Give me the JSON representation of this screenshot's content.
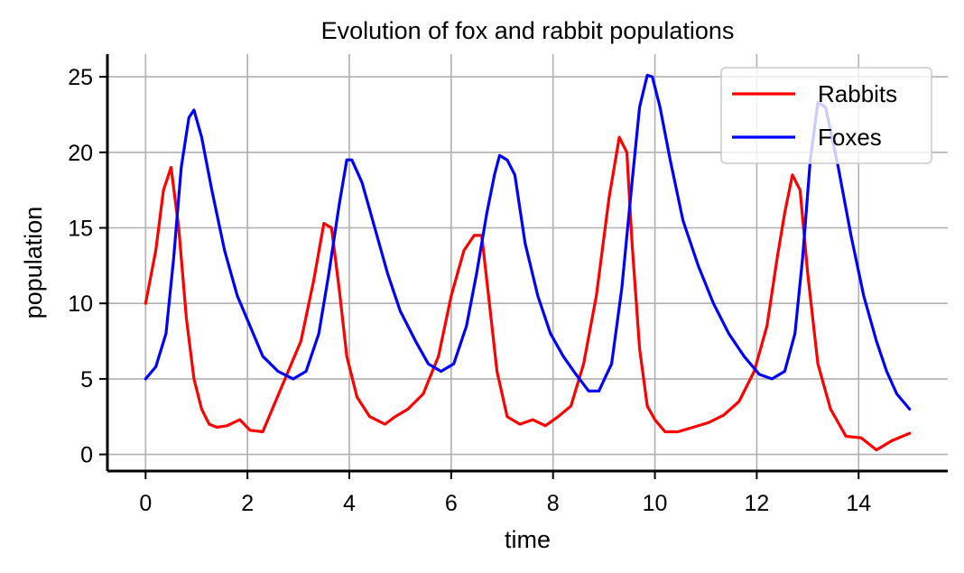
{
  "chart_data": {
    "type": "line",
    "title": "Evolution of fox and rabbit populations",
    "xlabel": "time",
    "ylabel": "population",
    "xlim": [
      -0.75,
      15.75
    ],
    "ylim": [
      -1.1,
      26.5
    ],
    "x_ticks": [
      0,
      2,
      4,
      6,
      8,
      10,
      12,
      14
    ],
    "y_ticks": [
      0,
      5,
      10,
      15,
      20,
      25
    ],
    "grid": true,
    "legend_position": "top-right",
    "series": [
      {
        "name": "Rabbits",
        "color": "#ff0000",
        "x": [
          0,
          0.2,
          0.35,
          0.5,
          0.65,
          0.8,
          0.95,
          1.1,
          1.25,
          1.4,
          1.6,
          1.85,
          2.05,
          2.3,
          2.55,
          2.8,
          3.05,
          3.3,
          3.5,
          3.65,
          3.8,
          3.95,
          4.15,
          4.4,
          4.7,
          4.9,
          5.15,
          5.45,
          5.75,
          6.0,
          6.25,
          6.45,
          6.6,
          6.75,
          6.9,
          7.1,
          7.35,
          7.6,
          7.85,
          8.1,
          8.35,
          8.6,
          8.85,
          9.1,
          9.3,
          9.45,
          9.55,
          9.7,
          9.85,
          10.0,
          10.2,
          10.45,
          10.75,
          11.05,
          11.35,
          11.65,
          11.95,
          12.2,
          12.4,
          12.55,
          12.7,
          12.85,
          13.0,
          13.2,
          13.45,
          13.75,
          14.05,
          14.35,
          14.65,
          15.0
        ],
        "values": [
          10,
          13.5,
          17.5,
          19,
          15,
          9,
          5,
          3,
          2,
          1.8,
          1.9,
          2.3,
          1.6,
          1.5,
          3.5,
          5.5,
          7.5,
          11.5,
          15.3,
          15,
          11,
          6.5,
          3.8,
          2.5,
          2,
          2.5,
          3,
          4,
          6.5,
          10.5,
          13.5,
          14.5,
          14.5,
          10,
          5.5,
          2.5,
          2,
          2.3,
          1.9,
          2.5,
          3.2,
          6,
          10.5,
          17,
          21,
          20,
          14,
          7,
          3.2,
          2.3,
          1.5,
          1.5,
          1.8,
          2.1,
          2.6,
          3.5,
          5.5,
          8.5,
          13,
          16,
          18.5,
          17.5,
          12,
          6,
          3,
          1.2,
          1.1,
          0.3,
          0.9,
          1.4
        ]
      },
      {
        "name": "Foxes",
        "color": "#0000ff",
        "x": [
          0,
          0.2,
          0.4,
          0.55,
          0.7,
          0.85,
          0.95,
          1.1,
          1.3,
          1.55,
          1.8,
          2.05,
          2.3,
          2.6,
          2.9,
          3.15,
          3.4,
          3.6,
          3.8,
          3.95,
          4.05,
          4.25,
          4.5,
          4.75,
          5.0,
          5.3,
          5.55,
          5.8,
          6.05,
          6.3,
          6.5,
          6.7,
          6.85,
          6.95,
          7.1,
          7.25,
          7.45,
          7.7,
          7.95,
          8.2,
          8.45,
          8.7,
          8.9,
          9.15,
          9.35,
          9.55,
          9.7,
          9.85,
          9.95,
          10.1,
          10.3,
          10.55,
          10.85,
          11.15,
          11.45,
          11.75,
          12.05,
          12.3,
          12.55,
          12.75,
          12.9,
          13.05,
          13.2,
          13.35,
          13.6,
          13.85,
          14.1,
          14.35,
          14.55,
          14.75,
          15.0
        ],
        "values": [
          5,
          5.8,
          8,
          13,
          19,
          22.3,
          22.8,
          21,
          17.5,
          13.5,
          10.5,
          8.5,
          6.5,
          5.5,
          5,
          5.5,
          8,
          12,
          16.5,
          19.5,
          19.5,
          18,
          15,
          12,
          9.5,
          7.5,
          6,
          5.5,
          6,
          8.5,
          12,
          16,
          18.5,
          19.8,
          19.5,
          18.5,
          14,
          10.5,
          8,
          6.5,
          5.3,
          4.2,
          4.2,
          6,
          11,
          18,
          23,
          25.1,
          25,
          23,
          19.5,
          15.5,
          12.5,
          10,
          8,
          6.5,
          5.3,
          5,
          5.5,
          8,
          13,
          19.5,
          23.3,
          23,
          19,
          14.5,
          10.5,
          7.5,
          5.5,
          4,
          3
        ]
      }
    ]
  }
}
